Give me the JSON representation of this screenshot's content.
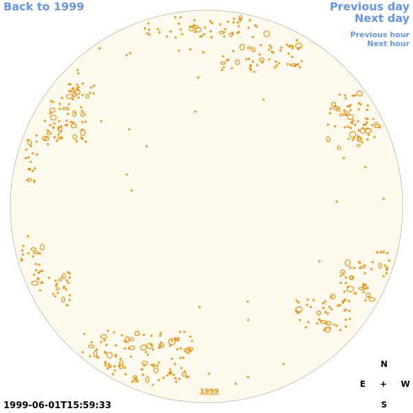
{
  "navigation": {
    "back": "Back to 1999",
    "previous_day": "Previous day",
    "next_day": "Next day",
    "previous_hour": "Previous hour",
    "next_hour": "Next hour"
  },
  "image": {
    "year_link": "1999",
    "timestamp": "1999-06-01T15:59:33"
  },
  "compass": {
    "north": "N",
    "east": "E",
    "center": "+",
    "west": "W",
    "south": "S"
  }
}
